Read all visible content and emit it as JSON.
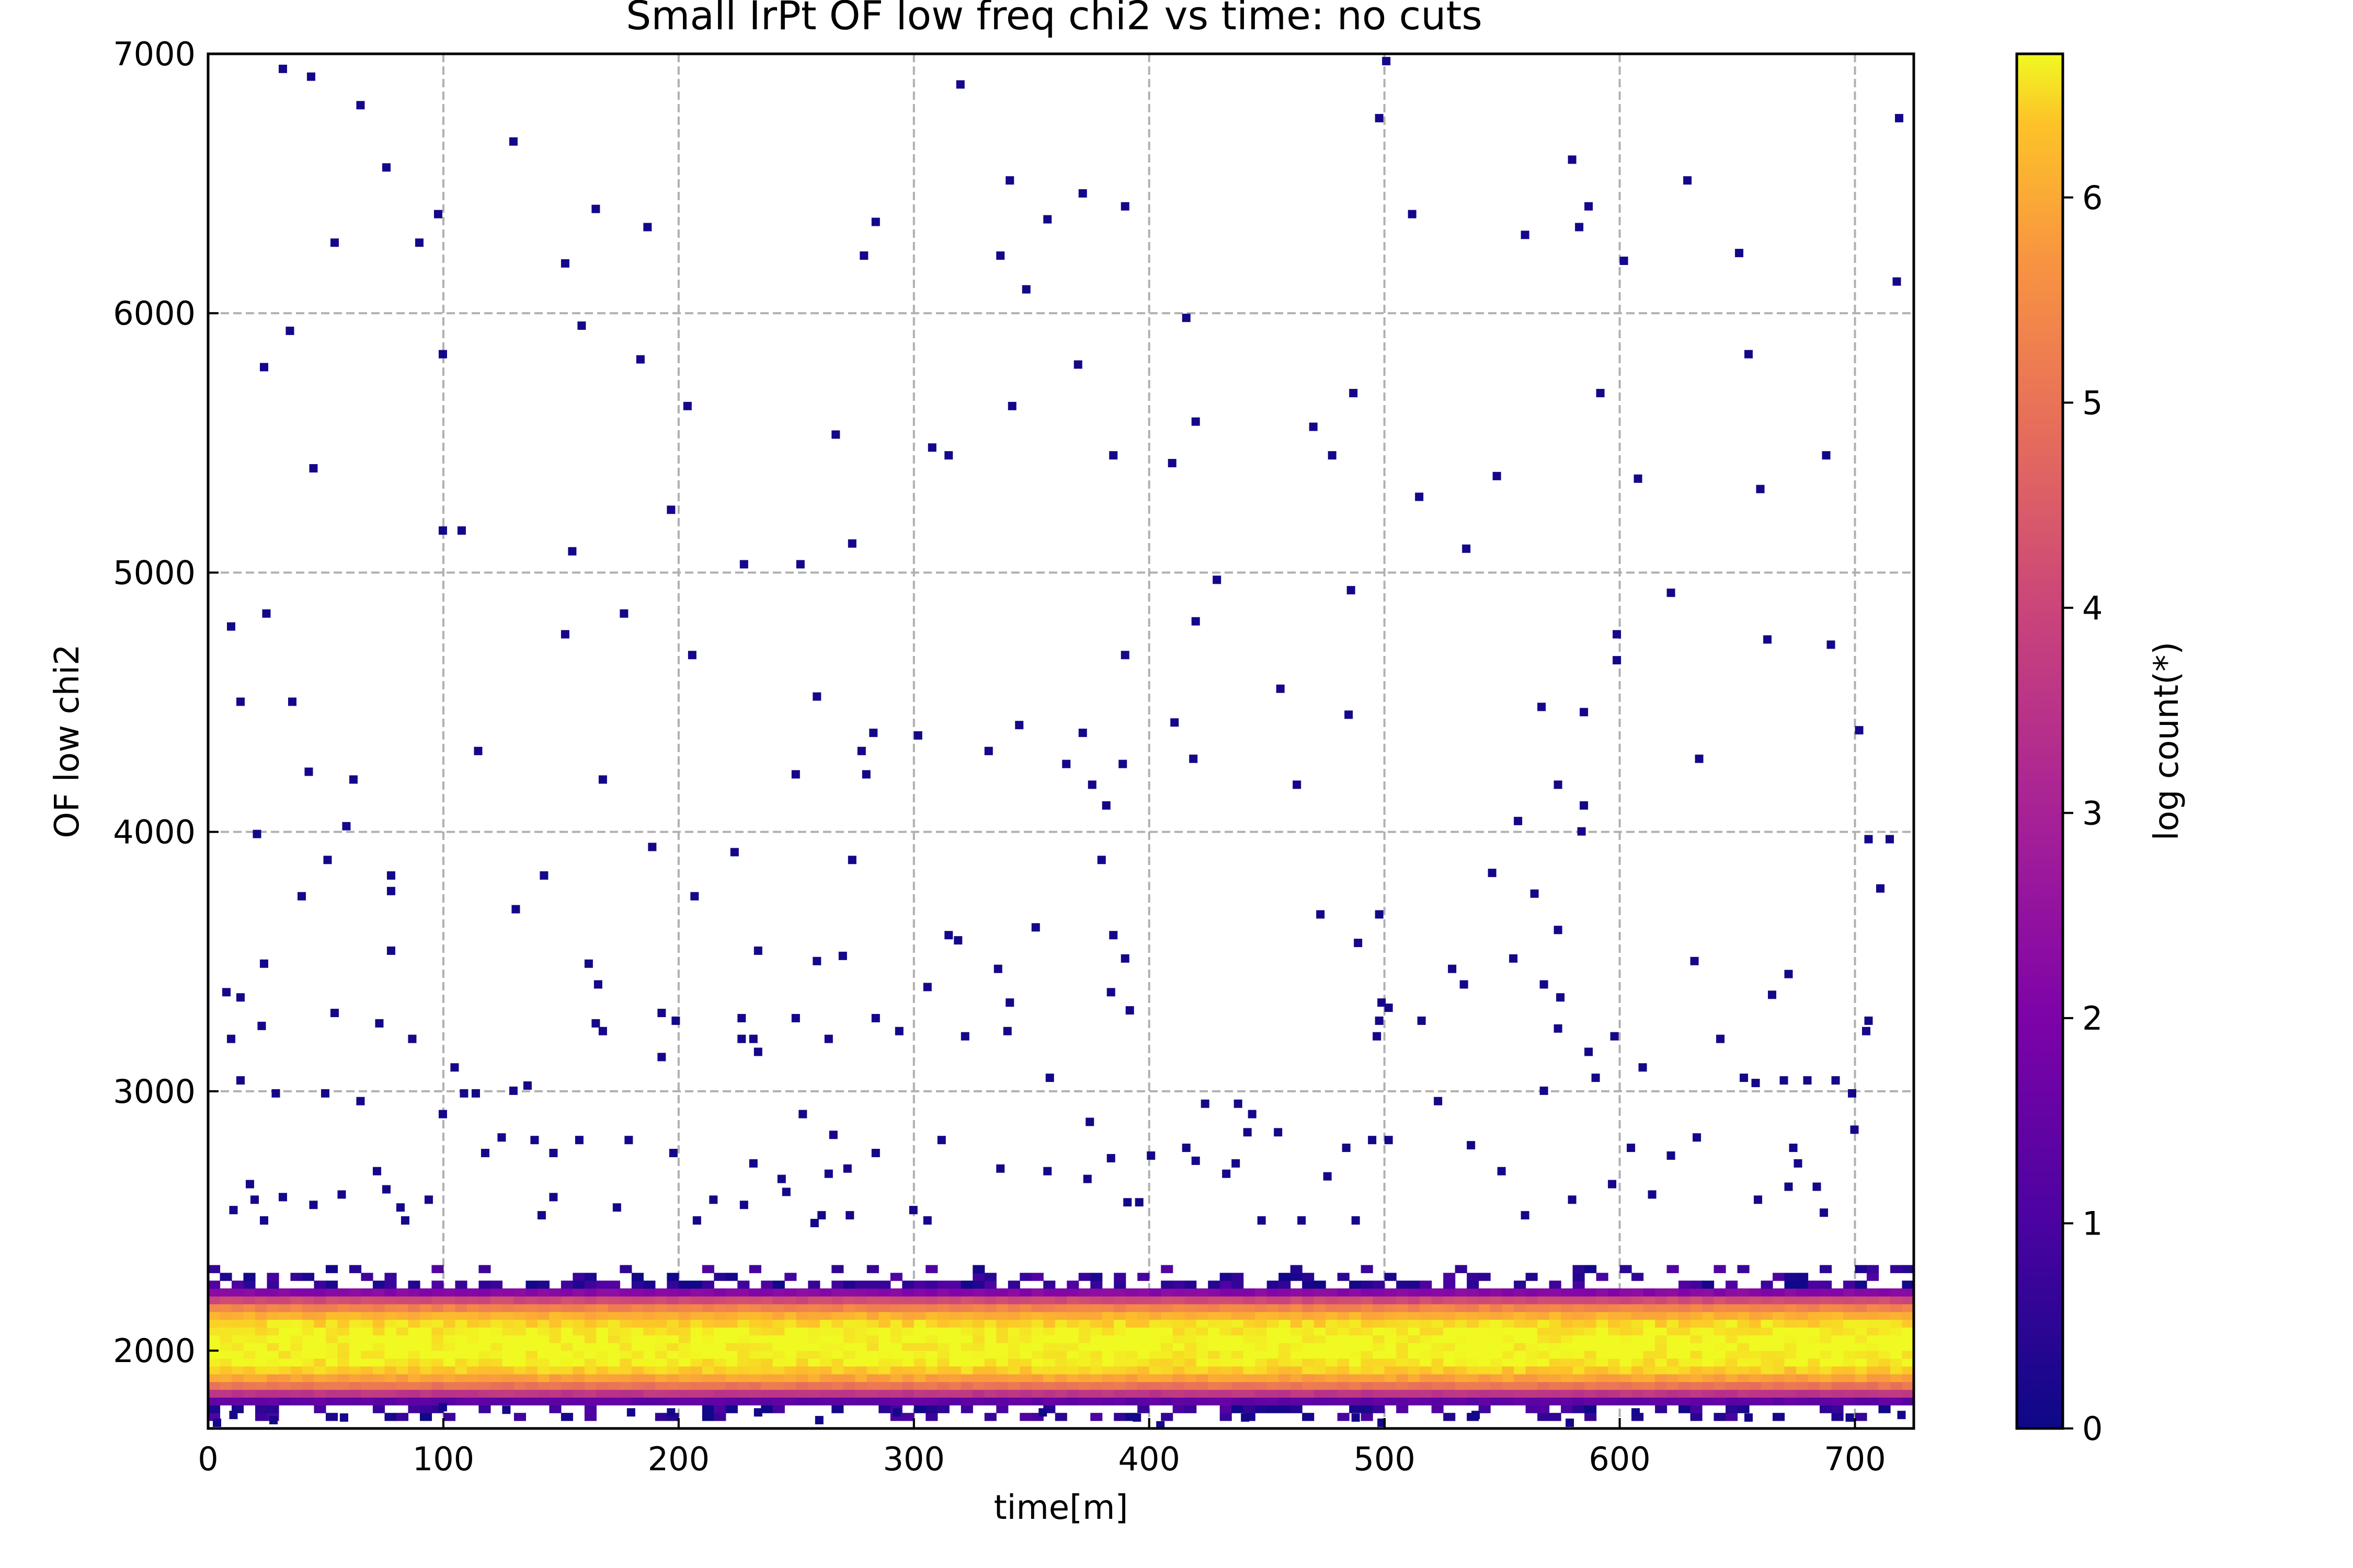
{
  "chart_data": {
    "type": "heatmap",
    "title": "Small IrPt OF low freq chi2 vs time: no cuts",
    "xlabel": "time[m]",
    "ylabel": "OF low chi2",
    "xlim": [
      0,
      725
    ],
    "ylim": [
      1700,
      7000
    ],
    "x_ticks": [
      0,
      100,
      200,
      300,
      400,
      500,
      600,
      700
    ],
    "y_ticks": [
      2000,
      3000,
      4000,
      5000,
      6000,
      7000
    ],
    "grid": true,
    "colormap": "plasma",
    "colorbar": {
      "label": "log count(*)",
      "range": [
        0,
        6.7
      ],
      "ticks": [
        0,
        1,
        2,
        3,
        4,
        5,
        6
      ]
    },
    "core_band": {
      "y_center": 2020,
      "y_half_width": 230,
      "peak_log_count": 6.7,
      "x_range": [
        0,
        725
      ]
    },
    "sparse_points": [
      [
        30,
        6940
      ],
      [
        42,
        6910
      ],
      [
        63,
        6800
      ],
      [
        74,
        6560
      ],
      [
        96,
        6380
      ],
      [
        128,
        6660
      ],
      [
        185,
        6330
      ],
      [
        88,
        6270
      ],
      [
        52,
        6270
      ],
      [
        150,
        6190
      ],
      [
        163,
        6400
      ],
      [
        33,
        5930
      ],
      [
        22,
        5790
      ],
      [
        98,
        5840
      ],
      [
        157,
        5950
      ],
      [
        182,
        5820
      ],
      [
        43,
        5400
      ],
      [
        98,
        5160
      ],
      [
        106,
        5160
      ],
      [
        153,
        5080
      ],
      [
        195,
        5240
      ],
      [
        202,
        5640
      ],
      [
        8,
        4790
      ],
      [
        23,
        4840
      ],
      [
        150,
        4760
      ],
      [
        175,
        4840
      ],
      [
        204,
        4680
      ],
      [
        12,
        4500
      ],
      [
        34,
        4500
      ],
      [
        41,
        4230
      ],
      [
        60,
        4200
      ],
      [
        113,
        4310
      ],
      [
        166,
        4200
      ],
      [
        19,
        3990
      ],
      [
        57,
        4020
      ],
      [
        49,
        3890
      ],
      [
        76,
        3830
      ],
      [
        76,
        3770
      ],
      [
        38,
        3750
      ],
      [
        141,
        3830
      ],
      [
        187,
        3940
      ],
      [
        205,
        3750
      ],
      [
        129,
        3700
      ],
      [
        22,
        3490
      ],
      [
        76,
        3540
      ],
      [
        6,
        3380
      ],
      [
        12,
        3360
      ],
      [
        52,
        3300
      ],
      [
        71,
        3260
      ],
      [
        8,
        3200
      ],
      [
        21,
        3250
      ],
      [
        85,
        3200
      ],
      [
        160,
        3490
      ],
      [
        164,
        3410
      ],
      [
        163,
        3260
      ],
      [
        166,
        3230
      ],
      [
        191,
        3300
      ],
      [
        197,
        3270
      ],
      [
        191,
        3130
      ],
      [
        12,
        3040
      ],
      [
        27,
        2990
      ],
      [
        48,
        2990
      ],
      [
        63,
        2960
      ],
      [
        103,
        3090
      ],
      [
        107,
        2990
      ],
      [
        112,
        2990
      ],
      [
        128,
        3000
      ],
      [
        134,
        3020
      ],
      [
        98,
        2910
      ],
      [
        116,
        2760
      ],
      [
        123,
        2820
      ],
      [
        137,
        2810
      ],
      [
        145,
        2760
      ],
      [
        156,
        2810
      ],
      [
        177,
        2810
      ],
      [
        196,
        2760
      ],
      [
        226,
        5030
      ],
      [
        250,
        5030
      ],
      [
        257,
        4520
      ],
      [
        248,
        4220
      ],
      [
        276,
        4310
      ],
      [
        278,
        4220
      ],
      [
        281,
        4380
      ],
      [
        272,
        5110
      ],
      [
        265,
        5530
      ],
      [
        313,
        5450
      ],
      [
        306,
        5480
      ],
      [
        277,
        6220
      ],
      [
        282,
        6350
      ],
      [
        318,
        6880
      ],
      [
        222,
        3920
      ],
      [
        272,
        3890
      ],
      [
        232,
        3540
      ],
      [
        257,
        3500
      ],
      [
        268,
        3520
      ],
      [
        225,
        3280
      ],
      [
        248,
        3280
      ],
      [
        282,
        3280
      ],
      [
        292,
        3230
      ],
      [
        225,
        3200
      ],
      [
        230,
        3200
      ],
      [
        232,
        3150
      ],
      [
        262,
        3200
      ],
      [
        304,
        3400
      ],
      [
        313,
        3600
      ],
      [
        317,
        3580
      ],
      [
        320,
        3210
      ],
      [
        251,
        2910
      ],
      [
        264,
        2830
      ],
      [
        270,
        2700
      ],
      [
        262,
        2680
      ],
      [
        230,
        2720
      ],
      [
        242,
        2660
      ],
      [
        282,
        2760
      ],
      [
        310,
        2810
      ],
      [
        339,
        6510
      ],
      [
        340,
        5640
      ],
      [
        346,
        6090
      ],
      [
        335,
        6220
      ],
      [
        355,
        6360
      ],
      [
        370,
        6460
      ],
      [
        388,
        6410
      ],
      [
        368,
        5800
      ],
      [
        383,
        5450
      ],
      [
        408,
        5420
      ],
      [
        414,
        5980
      ],
      [
        418,
        5580
      ],
      [
        427,
        4970
      ],
      [
        418,
        4810
      ],
      [
        388,
        4680
      ],
      [
        343,
        4410
      ],
      [
        370,
        4380
      ],
      [
        363,
        4260
      ],
      [
        387,
        4260
      ],
      [
        409,
        4420
      ],
      [
        417,
        4280
      ],
      [
        374,
        4180
      ],
      [
        380,
        4100
      ],
      [
        330,
        4310
      ],
      [
        300,
        4370
      ],
      [
        350,
        3630
      ],
      [
        378,
        3890
      ],
      [
        383,
        3600
      ],
      [
        382,
        3380
      ],
      [
        388,
        3510
      ],
      [
        390,
        3310
      ],
      [
        334,
        3470
      ],
      [
        339,
        3340
      ],
      [
        338,
        3230
      ],
      [
        356,
        3050
      ],
      [
        373,
        2880
      ],
      [
        382,
        2740
      ],
      [
        389,
        2570
      ],
      [
        394,
        2570
      ],
      [
        399,
        2750
      ],
      [
        422,
        2950
      ],
      [
        436,
        2950
      ],
      [
        442,
        2910
      ],
      [
        440,
        2840
      ],
      [
        453,
        2840
      ],
      [
        435,
        2720
      ],
      [
        431,
        2680
      ],
      [
        418,
        2730
      ],
      [
        335,
        2700
      ],
      [
        355,
        2690
      ],
      [
        372,
        2660
      ],
      [
        414,
        2780
      ],
      [
        454,
        4550
      ],
      [
        461,
        4180
      ],
      [
        468,
        5560
      ],
      [
        476,
        5450
      ],
      [
        485,
        5690
      ],
      [
        484,
        4930
      ],
      [
        483,
        4450
      ],
      [
        471,
        3680
      ],
      [
        487,
        3570
      ],
      [
        496,
        3680
      ],
      [
        496,
        3270
      ],
      [
        497,
        3340
      ],
      [
        495,
        3210
      ],
      [
        500,
        3320
      ],
      [
        510,
        6380
      ],
      [
        499,
        6970
      ],
      [
        496,
        6750
      ],
      [
        513,
        5290
      ],
      [
        533,
        5090
      ],
      [
        546,
        5370
      ],
      [
        555,
        4040
      ],
      [
        544,
        3840
      ],
      [
        527,
        3470
      ],
      [
        532,
        3410
      ],
      [
        514,
        3270
      ],
      [
        553,
        3510
      ],
      [
        562,
        3760
      ],
      [
        572,
        3620
      ],
      [
        566,
        3410
      ],
      [
        573,
        3360
      ],
      [
        572,
        3240
      ],
      [
        566,
        3000
      ],
      [
        585,
        3150
      ],
      [
        588,
        3050
      ],
      [
        596,
        3210
      ],
      [
        583,
        4100
      ],
      [
        582,
        4000
      ],
      [
        572,
        4180
      ],
      [
        583,
        4460
      ],
      [
        565,
        4480
      ],
      [
        597,
        4660
      ],
      [
        597,
        4760
      ],
      [
        578,
        6590
      ],
      [
        581,
        6330
      ],
      [
        585,
        6410
      ],
      [
        558,
        6300
      ],
      [
        600,
        6200
      ],
      [
        590,
        5690
      ],
      [
        606,
        5360
      ],
      [
        620,
        4920
      ],
      [
        632,
        4280
      ],
      [
        630,
        3500
      ],
      [
        641,
        3200
      ],
      [
        649,
        6230
      ],
      [
        627,
        6510
      ],
      [
        653,
        5840
      ],
      [
        658,
        5320
      ],
      [
        661,
        4740
      ],
      [
        663,
        3370
      ],
      [
        670,
        3450
      ],
      [
        668,
        3040
      ],
      [
        678,
        3040
      ],
      [
        690,
        3040
      ],
      [
        688,
        4720
      ],
      [
        686,
        5450
      ],
      [
        700,
        4390
      ],
      [
        704,
        3970
      ],
      [
        709,
        3780
      ],
      [
        713,
        3970
      ],
      [
        716,
        6120
      ],
      [
        717,
        6750
      ],
      [
        703,
        3230
      ],
      [
        704,
        3270
      ],
      [
        697,
        2990
      ],
      [
        698,
        2850
      ],
      [
        651,
        3050
      ],
      [
        656,
        3030
      ],
      [
        608,
        3090
      ],
      [
        631,
        2820
      ],
      [
        620,
        2750
      ],
      [
        603,
        2780
      ],
      [
        595,
        2640
      ],
      [
        521,
        2960
      ],
      [
        535,
        2790
      ],
      [
        548,
        2690
      ],
      [
        493,
        2810
      ],
      [
        500,
        2810
      ],
      [
        482,
        2780
      ],
      [
        474,
        2670
      ],
      [
        446,
        2500
      ],
      [
        463,
        2500
      ],
      [
        486,
        2500
      ],
      [
        558,
        2520
      ],
      [
        578,
        2580
      ],
      [
        612,
        2600
      ],
      [
        657,
        2580
      ],
      [
        670,
        2630
      ],
      [
        682,
        2630
      ],
      [
        674,
        2720
      ],
      [
        672,
        2780
      ],
      [
        685,
        2530
      ],
      [
        18,
        2580
      ],
      [
        16,
        2640
      ],
      [
        9,
        2540
      ],
      [
        22,
        2500
      ],
      [
        30,
        2590
      ],
      [
        43,
        2560
      ],
      [
        55,
        2600
      ],
      [
        70,
        2690
      ],
      [
        74,
        2620
      ],
      [
        80,
        2550
      ],
      [
        82,
        2500
      ],
      [
        92,
        2580
      ],
      [
        145,
        2590
      ],
      [
        140,
        2520
      ],
      [
        172,
        2550
      ],
      [
        213,
        2580
      ],
      [
        206,
        2500
      ],
      [
        226,
        2560
      ],
      [
        244,
        2610
      ],
      [
        256,
        2490
      ],
      [
        259,
        2520
      ],
      [
        271,
        2520
      ],
      [
        298,
        2540
      ],
      [
        304,
        2500
      ]
    ],
    "edge_points": [
      [
        2,
        1720
      ],
      [
        9,
        1750
      ],
      [
        26,
        1730
      ],
      [
        56,
        1740
      ],
      [
        98,
        1780
      ],
      [
        125,
        1770
      ],
      [
        178,
        1760
      ],
      [
        195,
        1760
      ],
      [
        232,
        1760
      ],
      [
        258,
        1730
      ],
      [
        291,
        1760
      ],
      [
        353,
        1760
      ],
      [
        393,
        1740
      ],
      [
        403,
        1710
      ],
      [
        439,
        1740
      ],
      [
        486,
        1740
      ],
      [
        497,
        1720
      ],
      [
        537,
        1750
      ],
      [
        577,
        1720
      ],
      [
        605,
        1760
      ],
      [
        653,
        1740
      ],
      [
        696,
        1740
      ],
      [
        718,
        1750
      ]
    ]
  }
}
